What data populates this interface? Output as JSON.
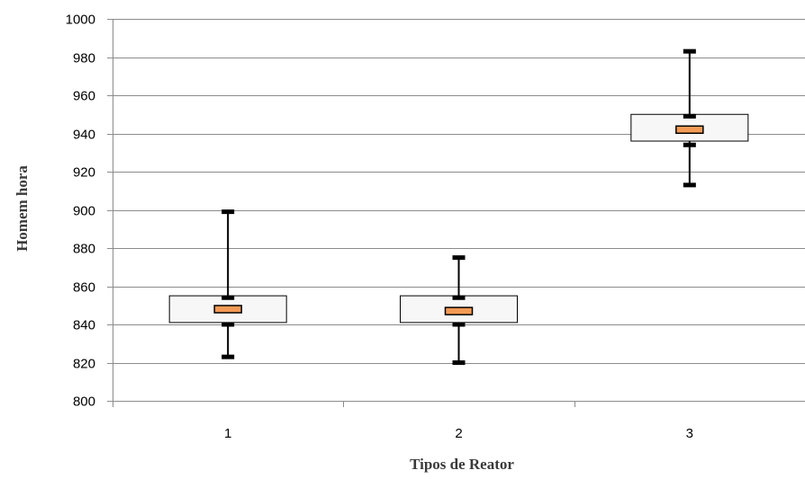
{
  "chart_data": {
    "type": "boxplot",
    "xlabel": "Tipos de Reator",
    "ylabel": "Homem hora",
    "ylim": [
      800,
      1000
    ],
    "yticks": [
      800,
      820,
      840,
      860,
      880,
      900,
      920,
      940,
      960,
      980,
      1000
    ],
    "grid": "horizontal",
    "categories": [
      "1",
      "2",
      "3"
    ],
    "boxes": [
      {
        "category": "1",
        "whisker_low": 823,
        "inner_low": 840,
        "q1": 841,
        "median": 848,
        "q3": 855,
        "inner_high": 854,
        "whisker_high": 899
      },
      {
        "category": "2",
        "whisker_low": 820,
        "inner_low": 840,
        "q1": 841,
        "median": 847,
        "q3": 855,
        "inner_high": 854,
        "whisker_high": 875
      },
      {
        "category": "3",
        "whisker_low": 913,
        "inner_low": 934,
        "q1": 936,
        "median": 942,
        "q3": 950,
        "inner_high": 949,
        "whisker_high": 983
      }
    ],
    "colors": {
      "median": "#f39a55",
      "box_fill": "#f7f7f7",
      "gridline": "#8c8c8c",
      "whisker": "#000000",
      "axis_title": "#3a3a3a"
    }
  }
}
